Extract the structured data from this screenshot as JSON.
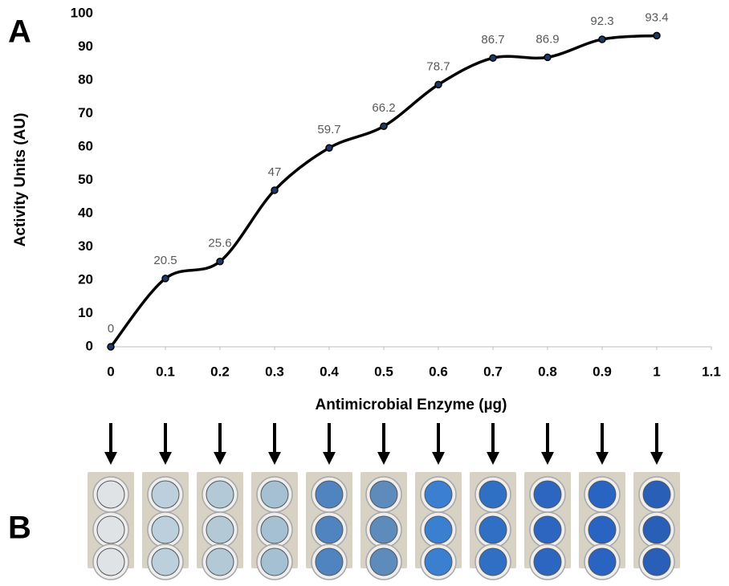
{
  "panel_labels": [
    "A",
    "B"
  ],
  "chart_data": {
    "type": "line",
    "x_label": "Antimicrobial Enzyme (µg)",
    "y_label": "Activity Units (AU)",
    "x": [
      0,
      0.1,
      0.2,
      0.3,
      0.4,
      0.5,
      0.6,
      0.7,
      0.8,
      0.9,
      1
    ],
    "values": [
      0,
      20.5,
      25.6,
      47,
      59.7,
      66.2,
      78.7,
      86.7,
      86.9,
      92.3,
      93.4
    ],
    "color": "#000000",
    "marker_color": "#1f3864",
    "xlim": [
      0,
      1.1
    ],
    "xticks": [
      0,
      0.1,
      0.2,
      0.3,
      0.4,
      0.5,
      0.6,
      0.7,
      0.8,
      0.9,
      1,
      1.1
    ],
    "ylim": [
      0,
      100
    ],
    "yticks": [
      0,
      10,
      20,
      30,
      40,
      50,
      60,
      70,
      80,
      90,
      100
    ],
    "smooth": true,
    "data_labels": true,
    "grid": false
  }
}
